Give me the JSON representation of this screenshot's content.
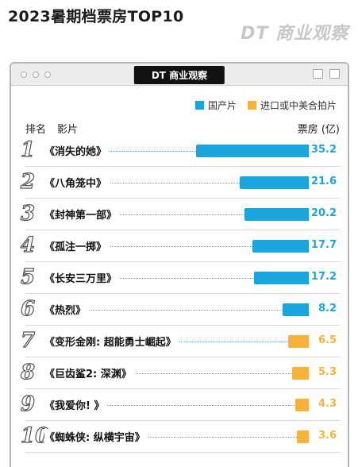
{
  "page": {
    "title": "2023暑期档票房TOP10",
    "brand_watermark": "DT 商业观察"
  },
  "panel": {
    "brand_label": "DT 商业观察"
  },
  "legend": [
    {
      "label": "国产片",
      "color": "#1aa6dd"
    },
    {
      "label": "进口或中美合拍片",
      "color": "#f6b23c"
    }
  ],
  "headers": {
    "rank": "排名",
    "film": "影片",
    "value": "票房 (亿)"
  },
  "chart_data": {
    "type": "bar",
    "title": "2023暑期档票房TOP10",
    "ylabel": "票房 (亿)",
    "xlim": [
      0,
      35.2
    ],
    "categories": [
      "《消失的她》",
      "《八角笼中》",
      "《封神第一部》",
      "《孤注一掷》",
      "《长安三万里》",
      "《热烈》",
      "《变形金刚: 超能勇士崛起》",
      "《巨齿鲨2: 深渊》",
      "《我爱你! 》",
      "《蜘蛛侠: 纵横宇宙》"
    ],
    "ranks": [
      "1",
      "2",
      "3",
      "4",
      "5",
      "6",
      "7",
      "8",
      "9",
      "10"
    ],
    "values": [
      35.2,
      21.6,
      20.2,
      17.7,
      17.2,
      8.2,
      6.5,
      5.3,
      4.3,
      3.6
    ],
    "value_labels": [
      "35.2",
      "21.6",
      "20.2",
      "17.7",
      "17.2",
      "8.2",
      "6.5",
      "5.3",
      "4.3",
      "3.6"
    ],
    "groups": [
      "国产片",
      "国产片",
      "国产片",
      "国产片",
      "国产片",
      "国产片",
      "进口或中美合拍片",
      "进口或中美合拍片",
      "进口或中美合拍片",
      "进口或中美合拍片"
    ],
    "colors": {
      "国产片": "#1aa6dd",
      "进口或中美合拍片": "#f6b23c"
    }
  }
}
